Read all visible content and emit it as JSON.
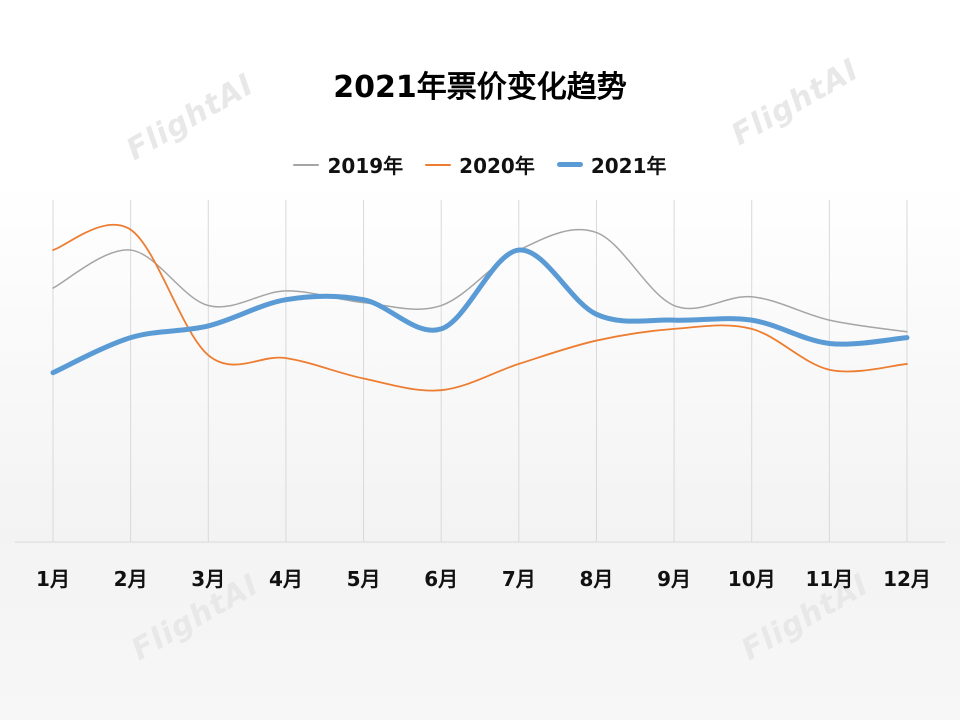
{
  "watermark": {
    "text": "FlightAI"
  },
  "chart_data": {
    "type": "line",
    "title": "2021年票价变化趋势",
    "categories": [
      "1月",
      "2月",
      "3月",
      "4月",
      "5月",
      "6月",
      "7月",
      "8月",
      "9月",
      "10月",
      "11月",
      "12月"
    ],
    "series": [
      {
        "name": "2019年",
        "color": "#a5a5a5",
        "values": [
          870,
          1000,
          810,
          860,
          820,
          810,
          1000,
          1060,
          810,
          840,
          760,
          720
        ]
      },
      {
        "name": "2020年",
        "color": "#ed7d31",
        "values": [
          1000,
          1070,
          640,
          630,
          560,
          520,
          610,
          690,
          730,
          730,
          590,
          610
        ]
      },
      {
        "name": "2021年",
        "color": "#5b9bd5",
        "values": [
          580,
          700,
          740,
          830,
          830,
          730,
          1000,
          780,
          760,
          760,
          680,
          700
        ]
      }
    ],
    "ylim": [
      0,
      1240
    ],
    "grid": {
      "vertical": true,
      "horizontal": false
    },
    "legend_position": "top"
  }
}
